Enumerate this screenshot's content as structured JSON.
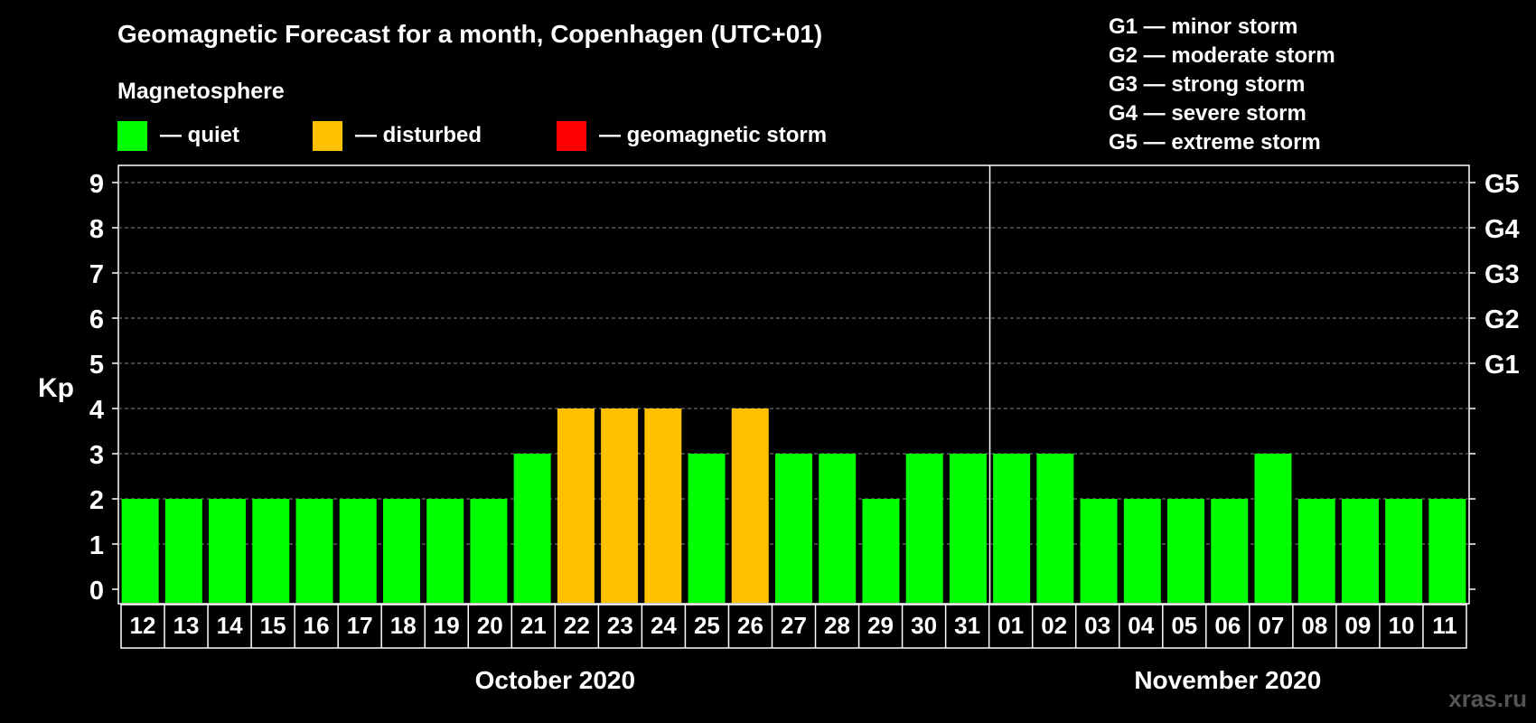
{
  "header": {
    "title": "Geomagnetic Forecast for a month, Copenhagen (UTC+01)",
    "subtitle": "Magnetosphere",
    "watermark": "xras.ru"
  },
  "legend": {
    "items": [
      {
        "label": "— quiet",
        "color": "#00ff00"
      },
      {
        "label": "— disturbed",
        "color": "#ffc000"
      },
      {
        "label": "— geomagnetic storm",
        "color": "#ff0000"
      }
    ]
  },
  "storm_scale": [
    "G1 — minor storm",
    "G2 — moderate storm",
    "G3 — strong storm",
    "G4 — severe storm",
    "G5 — extreme storm"
  ],
  "chart_data": {
    "type": "bar",
    "title": "Geomagnetic Forecast for a month, Copenhagen (UTC+01)",
    "ylabel": "Kp",
    "ylim": [
      0,
      9
    ],
    "yticks": [
      0,
      1,
      2,
      3,
      4,
      5,
      6,
      7,
      8,
      9
    ],
    "right_axis_labels": [
      {
        "kp": 5,
        "label": "G1"
      },
      {
        "kp": 6,
        "label": "G2"
      },
      {
        "kp": 7,
        "label": "G3"
      },
      {
        "kp": 8,
        "label": "G4"
      },
      {
        "kp": 9,
        "label": "G5"
      }
    ],
    "categories": [
      "12",
      "13",
      "14",
      "15",
      "16",
      "17",
      "18",
      "19",
      "20",
      "21",
      "22",
      "23",
      "24",
      "25",
      "26",
      "27",
      "28",
      "29",
      "30",
      "31",
      "01",
      "02",
      "03",
      "04",
      "05",
      "06",
      "07",
      "08",
      "09",
      "10",
      "11"
    ],
    "values": [
      2,
      2,
      2,
      2,
      2,
      2,
      2,
      2,
      2,
      3,
      4,
      4,
      4,
      3,
      4,
      3,
      3,
      2,
      3,
      3,
      3,
      3,
      2,
      2,
      2,
      2,
      3,
      2,
      2,
      2,
      2
    ],
    "status": [
      "quiet",
      "quiet",
      "quiet",
      "quiet",
      "quiet",
      "quiet",
      "quiet",
      "quiet",
      "quiet",
      "quiet",
      "disturbed",
      "disturbed",
      "disturbed",
      "quiet",
      "disturbed",
      "quiet",
      "quiet",
      "quiet",
      "quiet",
      "quiet",
      "quiet",
      "quiet",
      "quiet",
      "quiet",
      "quiet",
      "quiet",
      "quiet",
      "quiet",
      "quiet",
      "quiet",
      "quiet"
    ],
    "status_colors": {
      "quiet": "#00ff00",
      "disturbed": "#ffc000",
      "storm": "#ff0000"
    },
    "months": [
      {
        "label": "October 2020",
        "start": 0,
        "count": 20
      },
      {
        "label": "November 2020",
        "start": 20,
        "count": 11
      }
    ],
    "grid": true
  }
}
